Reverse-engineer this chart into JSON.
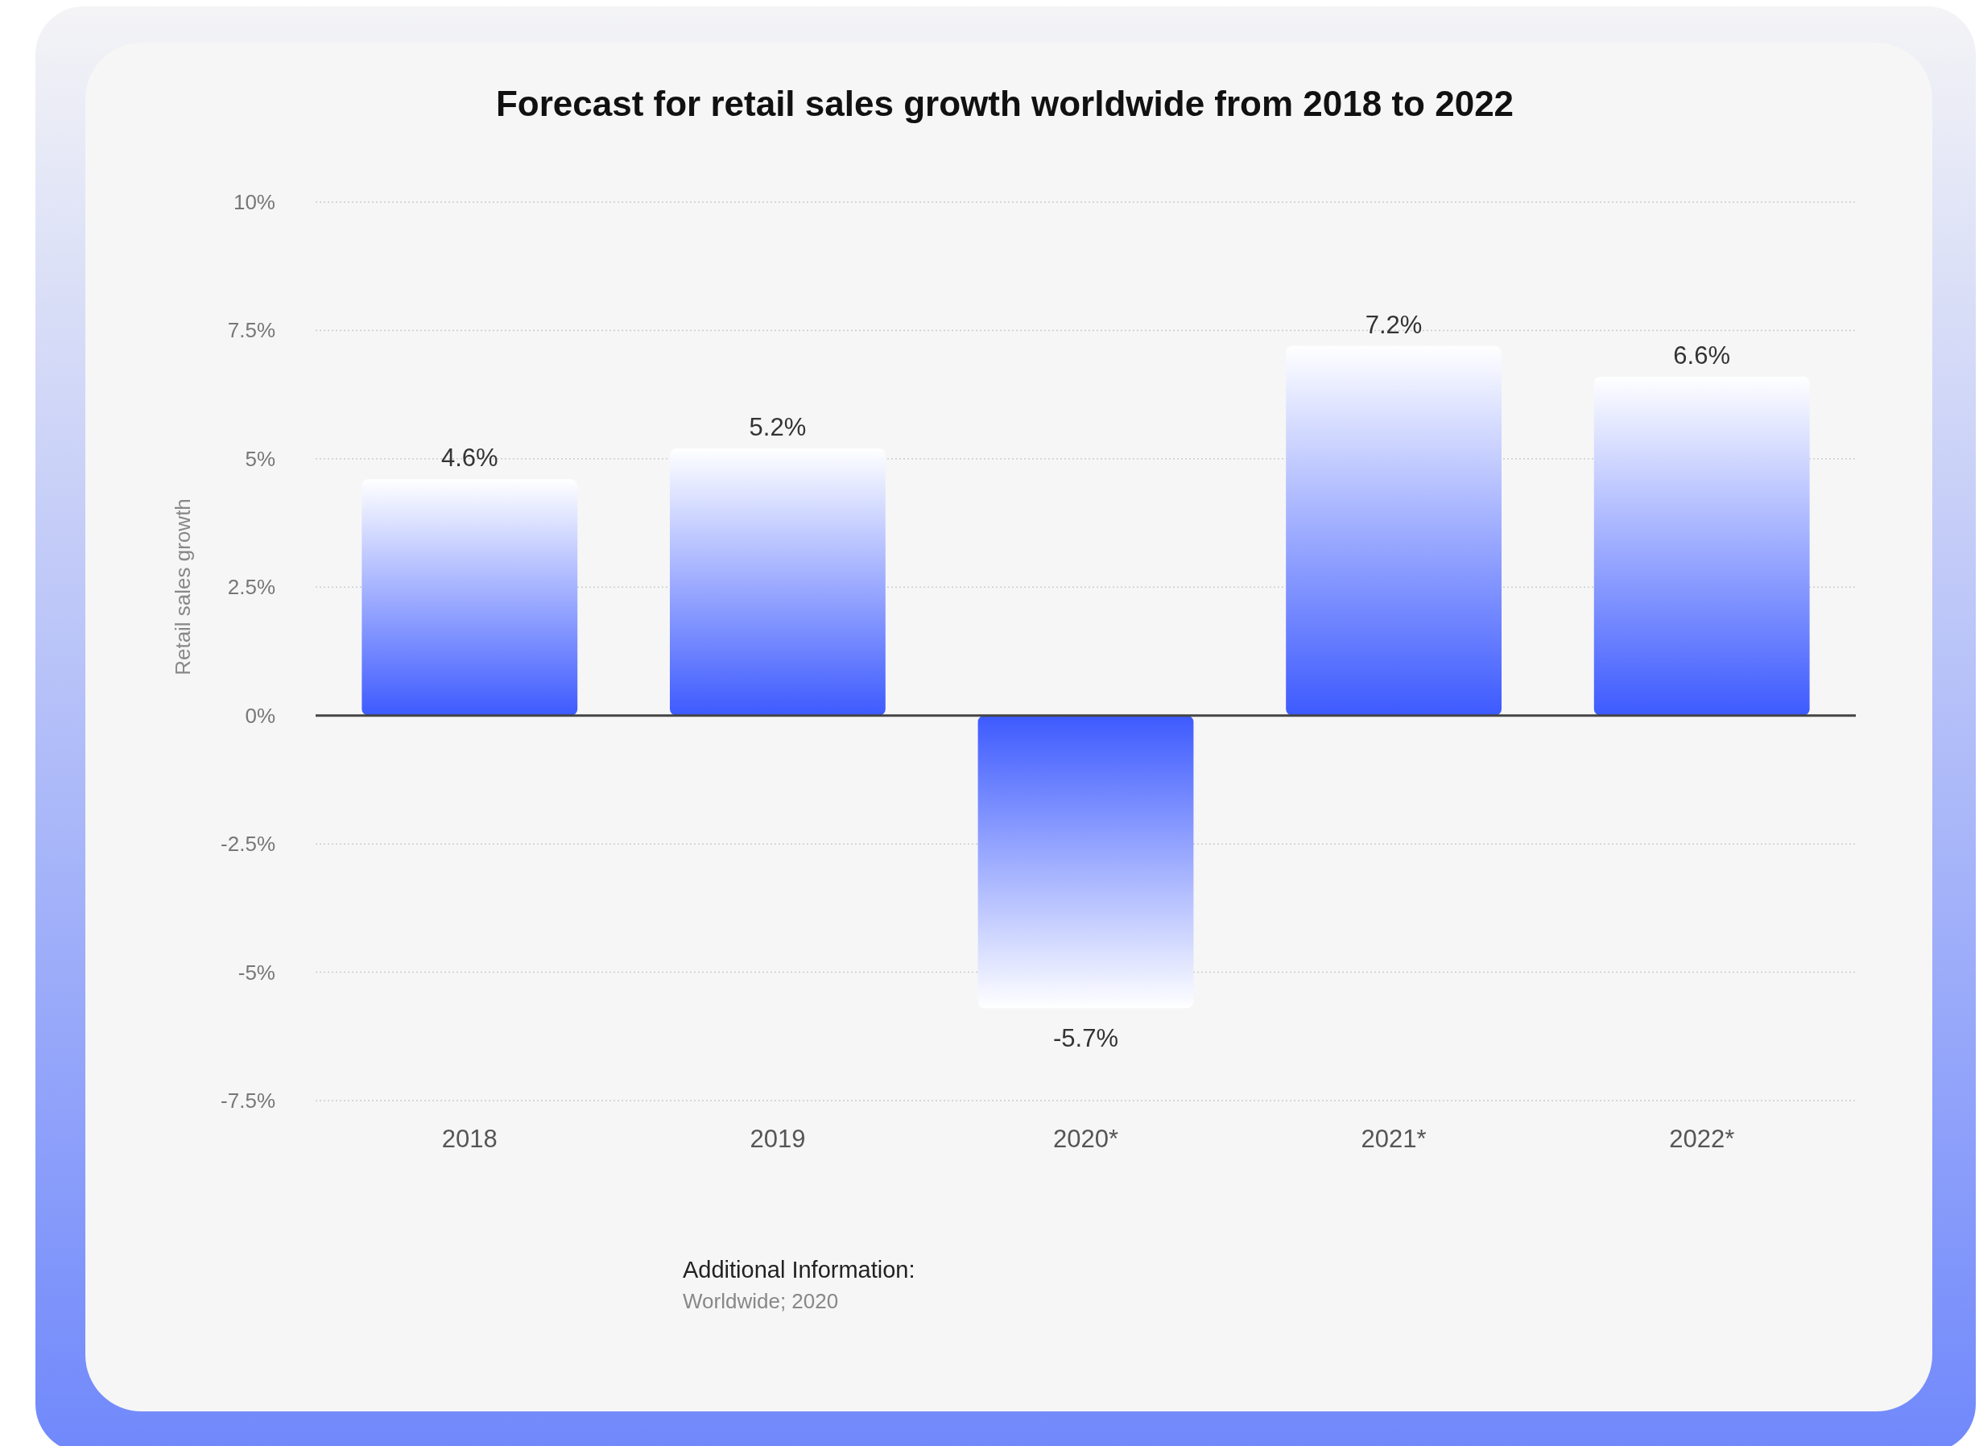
{
  "chart_data": {
    "type": "bar",
    "title": "Forecast for retail sales growth worldwide from 2018 to 2022",
    "ylabel": "Retail sales growth",
    "categories": [
      "2018",
      "2019",
      "2020*",
      "2021*",
      "2022*"
    ],
    "values": [
      4.6,
      5.2,
      -5.7,
      7.2,
      6.6
    ],
    "value_labels": [
      "4.6%",
      "5.2%",
      "-5.7%",
      "7.2%",
      "6.6%"
    ],
    "color": "#3d5afe",
    "ylim": [
      -7.5,
      10
    ],
    "yticks": [
      {
        "value": -7.5,
        "label": "-7.5%"
      },
      {
        "value": -5,
        "label": "-5%"
      },
      {
        "value": -2.5,
        "label": "-2.5%"
      },
      {
        "value": 0,
        "label": "0%"
      },
      {
        "value": 2.5,
        "label": "2.5%"
      },
      {
        "value": 5,
        "label": "5%"
      },
      {
        "value": 7.5,
        "label": "7.5%"
      },
      {
        "value": 10,
        "label": "10%"
      }
    ],
    "grid": "y",
    "annotations": [
      "Additional Information:",
      "Worldwide; 2020"
    ]
  }
}
